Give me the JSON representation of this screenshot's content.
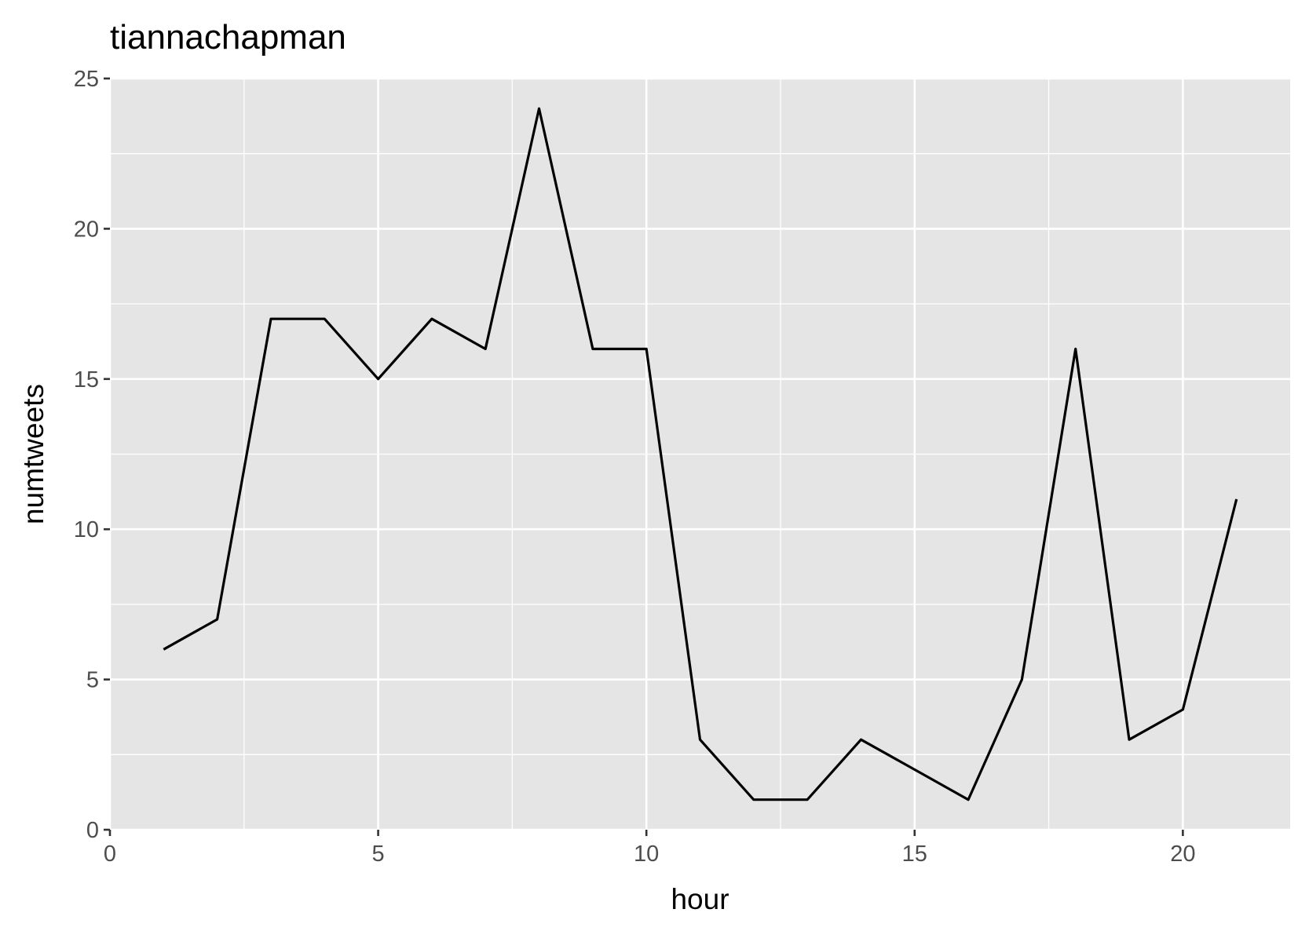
{
  "chart_data": {
    "type": "line",
    "title": "tiannachapman",
    "xlabel": "hour",
    "ylabel": "numtweets",
    "xlim": [
      0,
      22
    ],
    "ylim": [
      0,
      25
    ],
    "x_ticks": [
      0,
      5,
      10,
      15,
      20
    ],
    "y_ticks": [
      0,
      5,
      10,
      15,
      20,
      25
    ],
    "grid": true,
    "legend": "none",
    "colors": {
      "panel_background": "#E5E5E5",
      "grid": "#FFFFFF",
      "line": "#000000",
      "tick_label": "#4D4D4D",
      "tick_mark": "#333333"
    },
    "series": [
      {
        "x": [
          1,
          2,
          3,
          4,
          5,
          6,
          7,
          8,
          9,
          10,
          11,
          12,
          13,
          14,
          15,
          16,
          17,
          18,
          19,
          20,
          21
        ],
        "values": [
          6,
          7,
          17,
          17,
          15,
          17,
          16,
          24,
          16,
          16,
          3,
          1,
          1,
          3,
          2,
          1,
          5,
          16,
          3,
          4,
          11
        ]
      }
    ]
  }
}
